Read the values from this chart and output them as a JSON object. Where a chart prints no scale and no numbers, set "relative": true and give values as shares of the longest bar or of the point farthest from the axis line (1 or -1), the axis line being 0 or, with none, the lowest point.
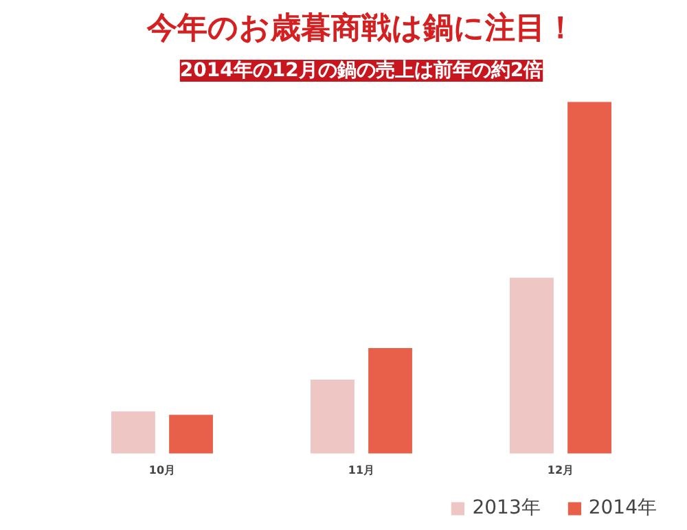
{
  "chart_data": {
    "type": "bar",
    "title": "今年のお歳暮商戦は鍋に注目！",
    "subtitle": "2014年の12月の鍋の売上は前年の約2倍",
    "categories": [
      "10月",
      "11月",
      "12月"
    ],
    "relative": true,
    "legend": "bottom right",
    "series": [
      {
        "name": "2013年",
        "color": "#eec6c4",
        "values": [
          0.12,
          0.21,
          0.5
        ]
      },
      {
        "name": "2014年",
        "color": "#e8604a",
        "values": [
          0.11,
          0.3,
          1
        ]
      }
    ]
  }
}
